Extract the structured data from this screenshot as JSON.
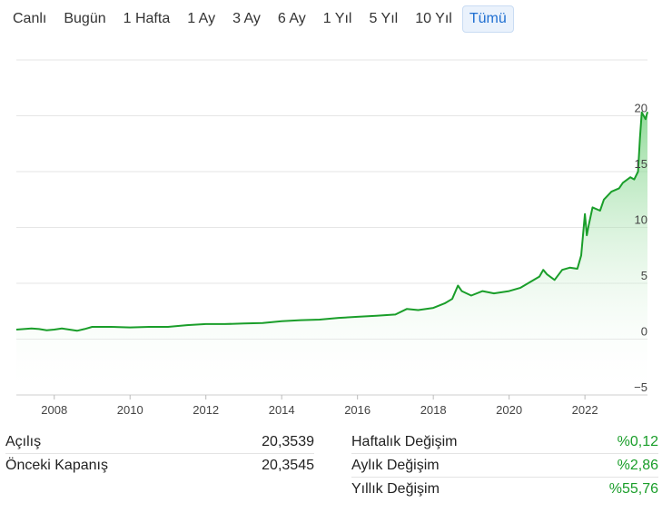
{
  "range_tabs": {
    "items": [
      "Canlı",
      "Bugün",
      "1 Hafta",
      "1 Ay",
      "3 Ay",
      "6 Ay",
      "1 Yıl",
      "5 Yıl",
      "10 Yıl",
      "Tümü"
    ],
    "active_index": 9
  },
  "colors": {
    "line": "#1a9e2a",
    "fill_top": "#6fcf7a",
    "grid": "#e6e6e6",
    "axis_text": "#444444",
    "positive": "#1a9e2a",
    "active_tab": "#1f6fd1"
  },
  "chart_data": {
    "type": "area",
    "xlim": [
      2007.0,
      2023.65
    ],
    "ylim": [
      -5,
      25
    ],
    "x_ticks": [
      2008,
      2010,
      2012,
      2014,
      2016,
      2018,
      2020,
      2022
    ],
    "x_tick_labels": [
      "2008",
      "2010",
      "2012",
      "2014",
      "2016",
      "2018",
      "2020",
      "2022"
    ],
    "y_ticks": [
      -5,
      0,
      5,
      10,
      15,
      20
    ],
    "y_tick_labels": [
      "−5",
      "0",
      "5",
      "10",
      "15",
      "20"
    ],
    "grid": true,
    "series": [
      {
        "x": [
          2007.0,
          2007.2,
          2007.4,
          2007.6,
          2007.8,
          2008.0,
          2008.2,
          2008.4,
          2008.6,
          2008.8,
          2009.0,
          2009.5,
          2010.0,
          2010.5,
          2011.0,
          2011.5,
          2012.0,
          2012.5,
          2013.0,
          2013.5,
          2014.0,
          2014.5,
          2015.0,
          2015.5,
          2016.0,
          2016.5,
          2017.0,
          2017.3,
          2017.6,
          2018.0,
          2018.3,
          2018.5,
          2018.65,
          2018.75,
          2019.0,
          2019.3,
          2019.6,
          2020.0,
          2020.3,
          2020.6,
          2020.8,
          2020.9,
          2021.0,
          2021.2,
          2021.4,
          2021.6,
          2021.8,
          2021.9,
          2022.0,
          2022.05,
          2022.1,
          2022.2,
          2022.4,
          2022.5,
          2022.7,
          2022.9,
          2023.0,
          2023.2,
          2023.3,
          2023.4,
          2023.45,
          2023.5,
          2023.6,
          2023.65
        ],
        "y": [
          0.85,
          0.9,
          0.95,
          0.9,
          0.8,
          0.85,
          0.95,
          0.85,
          0.75,
          0.9,
          1.1,
          1.1,
          1.05,
          1.1,
          1.1,
          1.25,
          1.35,
          1.35,
          1.4,
          1.45,
          1.6,
          1.7,
          1.75,
          1.9,
          2.0,
          2.1,
          2.2,
          2.7,
          2.6,
          2.8,
          3.2,
          3.6,
          4.8,
          4.3,
          3.9,
          4.3,
          4.1,
          4.3,
          4.6,
          5.2,
          5.6,
          6.2,
          5.8,
          5.3,
          6.2,
          6.4,
          6.3,
          7.5,
          11.2,
          9.3,
          10.2,
          11.8,
          11.5,
          12.5,
          13.2,
          13.5,
          14.0,
          14.5,
          14.3,
          15.0,
          18.0,
          20.3,
          19.7,
          20.35
        ]
      }
    ]
  },
  "stats_left": [
    {
      "label": "Açılış",
      "value": "20,3539"
    },
    {
      "label": "Önceki Kapanış",
      "value": "20,3545"
    }
  ],
  "stats_right": [
    {
      "label": "Haftalık Değişim",
      "value": "%0,12"
    },
    {
      "label": "Aylık Değişim",
      "value": "%2,86"
    },
    {
      "label": "Yıllık Değişim",
      "value": "%55,76"
    }
  ]
}
